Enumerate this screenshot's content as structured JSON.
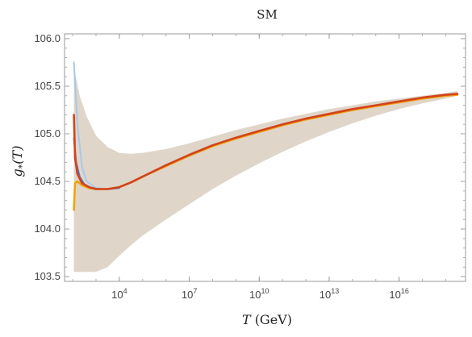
{
  "chart_data": {
    "type": "line",
    "title": "SM",
    "xlabel": {
      "var": "T",
      "unit": "(GeV)"
    },
    "ylabel": {
      "var": "g",
      "sub": "*",
      "arg": "(T)"
    },
    "x_scale": "log10",
    "xlim_exponent": [
      1.65,
      18.85
    ],
    "ylim": [
      103.45,
      106.05
    ],
    "x_ticks": [
      {
        "base": "10",
        "exp": "4",
        "value": 4
      },
      {
        "base": "10",
        "exp": "7",
        "value": 7
      },
      {
        "base": "10",
        "exp": "10",
        "value": 10
      },
      {
        "base": "10",
        "exp": "13",
        "value": 13
      },
      {
        "base": "10",
        "exp": "16",
        "value": 16
      }
    ],
    "y_ticks": [
      "103.5",
      "104.0",
      "104.5",
      "105.0",
      "105.5",
      "106.0"
    ],
    "band": {
      "color": "#d9cfc0",
      "x_log10": [
        2.05,
        2.3,
        2.6,
        3.0,
        3.5,
        4.0,
        4.5,
        5.0,
        6.0,
        7.0,
        8.0,
        9.0,
        10.0,
        11.0,
        12.0,
        13.0,
        14.0,
        15.0,
        16.0,
        17.0,
        18.0,
        18.5
      ],
      "upper": [
        105.7,
        105.4,
        105.18,
        104.98,
        104.86,
        104.8,
        104.79,
        104.8,
        104.84,
        104.9,
        104.97,
        105.04,
        105.1,
        105.16,
        105.21,
        105.26,
        105.3,
        105.34,
        105.37,
        105.4,
        105.43,
        105.45
      ],
      "lower": [
        103.55,
        103.55,
        103.55,
        103.55,
        103.6,
        103.72,
        103.83,
        103.93,
        104.1,
        104.26,
        104.42,
        104.56,
        104.69,
        104.81,
        104.92,
        105.02,
        105.11,
        105.19,
        105.26,
        105.32,
        105.37,
        105.4
      ]
    },
    "series": [
      {
        "color": "#a8c8ec",
        "x_log10": [
          2.05,
          2.2,
          2.4,
          2.6,
          3.0,
          3.5,
          4.0
        ],
        "y": [
          105.75,
          105.1,
          104.65,
          104.5,
          104.43,
          104.42,
          104.44
        ]
      },
      {
        "color": "#4a78c8",
        "x_log10": [
          2.05,
          2.15,
          2.3,
          2.5,
          2.8,
          3.2,
          3.6,
          4.0
        ],
        "y": [
          104.95,
          104.7,
          104.55,
          104.47,
          104.43,
          104.42,
          104.42,
          104.43
        ]
      },
      {
        "color": "#f2a20c",
        "x_log10": [
          2.05,
          2.1,
          2.2,
          2.4,
          2.7,
          3.0,
          3.5,
          4.0,
          4.5,
          5.0,
          6.0,
          7.0,
          8.0,
          9.0,
          10.0,
          11.0,
          12.0,
          13.0,
          14.0,
          15.0,
          16.0,
          17.0,
          18.0,
          18.5
        ],
        "y": [
          104.2,
          104.48,
          104.5,
          104.46,
          104.43,
          104.42,
          104.42,
          104.44,
          104.49,
          104.55,
          104.66,
          104.77,
          104.87,
          104.95,
          105.02,
          105.09,
          105.15,
          105.2,
          105.25,
          105.29,
          105.33,
          105.37,
          105.4,
          105.41
        ]
      },
      {
        "color": "#d2431c",
        "x_log10": [
          2.05,
          2.1,
          2.2,
          2.4,
          2.7,
          3.0,
          3.5,
          4.0,
          4.5,
          5.0,
          6.0,
          7.0,
          8.0,
          9.0,
          10.0,
          11.0,
          12.0,
          13.0,
          14.0,
          15.0,
          16.0,
          17.0,
          18.0,
          18.5
        ],
        "y": [
          105.2,
          104.75,
          104.58,
          104.48,
          104.44,
          104.42,
          104.42,
          104.44,
          104.49,
          104.55,
          104.67,
          104.78,
          104.88,
          104.96,
          105.03,
          105.1,
          105.16,
          105.21,
          105.26,
          105.3,
          105.34,
          105.38,
          105.41,
          105.42
        ]
      }
    ]
  }
}
